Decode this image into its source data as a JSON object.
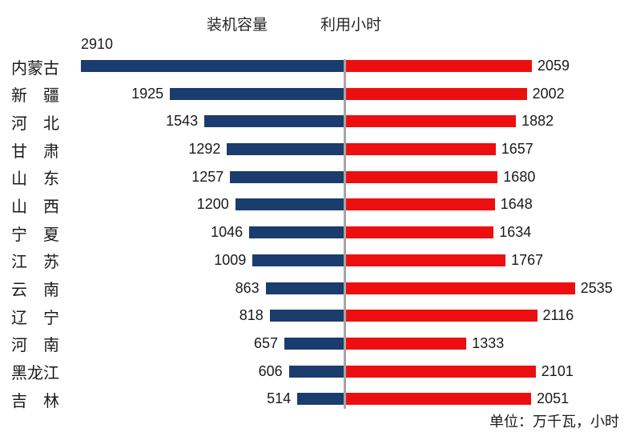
{
  "chart_data": {
    "type": "bar",
    "variant": "diverging-horizontal",
    "series_headers": {
      "left": "装机容量",
      "right": "利用小时"
    },
    "unit_note": "单位：万千瓦，小时",
    "categories": [
      "内蒙古",
      "新疆",
      "河北",
      "甘肃",
      "山东",
      "山西",
      "宁夏",
      "江苏",
      "云南",
      "辽宁",
      "河南",
      "黑龙江",
      "吉林"
    ],
    "categories_display": [
      "内蒙古",
      "新　疆",
      "河　北",
      "甘　肃",
      "山　东",
      "山　西",
      "宁　夏",
      "江　苏",
      "云　南",
      "辽　宁",
      "河　南",
      "黑龙江",
      "吉　林"
    ],
    "series": [
      {
        "name": "装机容量",
        "side": "left",
        "color": "#1A3D6D",
        "axis_range": [
          0,
          2910
        ],
        "values": [
          2910,
          1925,
          1543,
          1292,
          1257,
          1200,
          1046,
          1009,
          863,
          818,
          657,
          606,
          514
        ]
      },
      {
        "name": "利用小时",
        "side": "right",
        "color": "#ED0F0F",
        "axis_range": [
          0,
          2535
        ],
        "values": [
          2059,
          2002,
          1882,
          1657,
          1680,
          1648,
          1634,
          1767,
          2535,
          2116,
          1333,
          2101,
          2051
        ]
      }
    ],
    "grid": false,
    "legend_position": "top-as-headers",
    "value_labels": "outside-end",
    "divider_color": "#A6A6A6",
    "background_color": "#FFFFFF",
    "text_color": "#1A1A1A"
  }
}
